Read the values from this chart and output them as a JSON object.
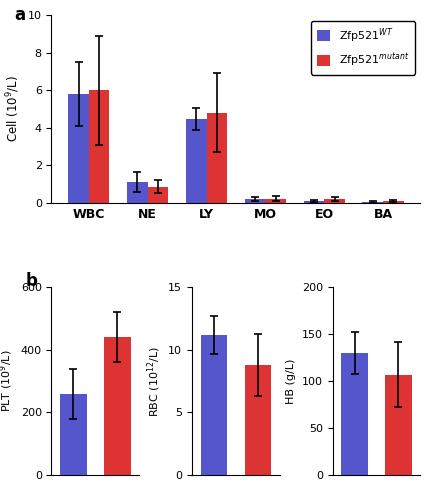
{
  "panel_a": {
    "categories": [
      "WBC",
      "NE",
      "LY",
      "MO",
      "EO",
      "BA"
    ],
    "wt_values": [
      5.8,
      1.1,
      4.45,
      0.18,
      0.1,
      0.05
    ],
    "mut_values": [
      6.0,
      0.85,
      4.8,
      0.22,
      0.18,
      0.1
    ],
    "wt_errors": [
      1.7,
      0.55,
      0.6,
      0.1,
      0.07,
      0.04
    ],
    "mut_errors": [
      2.9,
      0.35,
      2.1,
      0.12,
      0.1,
      0.06
    ],
    "ylabel": "Cell (10$^9$/L)",
    "ylim": [
      0,
      10
    ],
    "yticks": [
      0,
      2,
      4,
      6,
      8,
      10
    ]
  },
  "panel_b_plt": {
    "wt_value": 260,
    "mut_value": 440,
    "wt_error": 80,
    "mut_error": 80,
    "ylabel": "PLT (10$^9$/L)",
    "ylim": [
      0,
      600
    ],
    "yticks": [
      0,
      200,
      400,
      600
    ]
  },
  "panel_b_rbc": {
    "wt_value": 11.2,
    "mut_value": 8.8,
    "wt_error": 1.5,
    "mut_error": 2.5,
    "ylabel": "RBC (10$^{12}$/L)",
    "ylim": [
      0,
      15
    ],
    "yticks": [
      0,
      5,
      10,
      15
    ]
  },
  "panel_b_hb": {
    "wt_value": 130,
    "mut_value": 107,
    "wt_error": 22,
    "mut_error": 35,
    "ylabel": "HB (g/L)",
    "ylim": [
      0,
      200
    ],
    "yticks": [
      0,
      50,
      100,
      150,
      200
    ]
  },
  "wt_color": "#5555cc",
  "mut_color": "#dd3333",
  "bar_width": 0.35,
  "legend_wt": "Zfp521$^{WT}$",
  "legend_mut": "Zfp521$^{mutant}$",
  "label_a": "a",
  "label_b": "b",
  "bg_color": "#ffffff",
  "ecolor": "black",
  "capsize": 3
}
